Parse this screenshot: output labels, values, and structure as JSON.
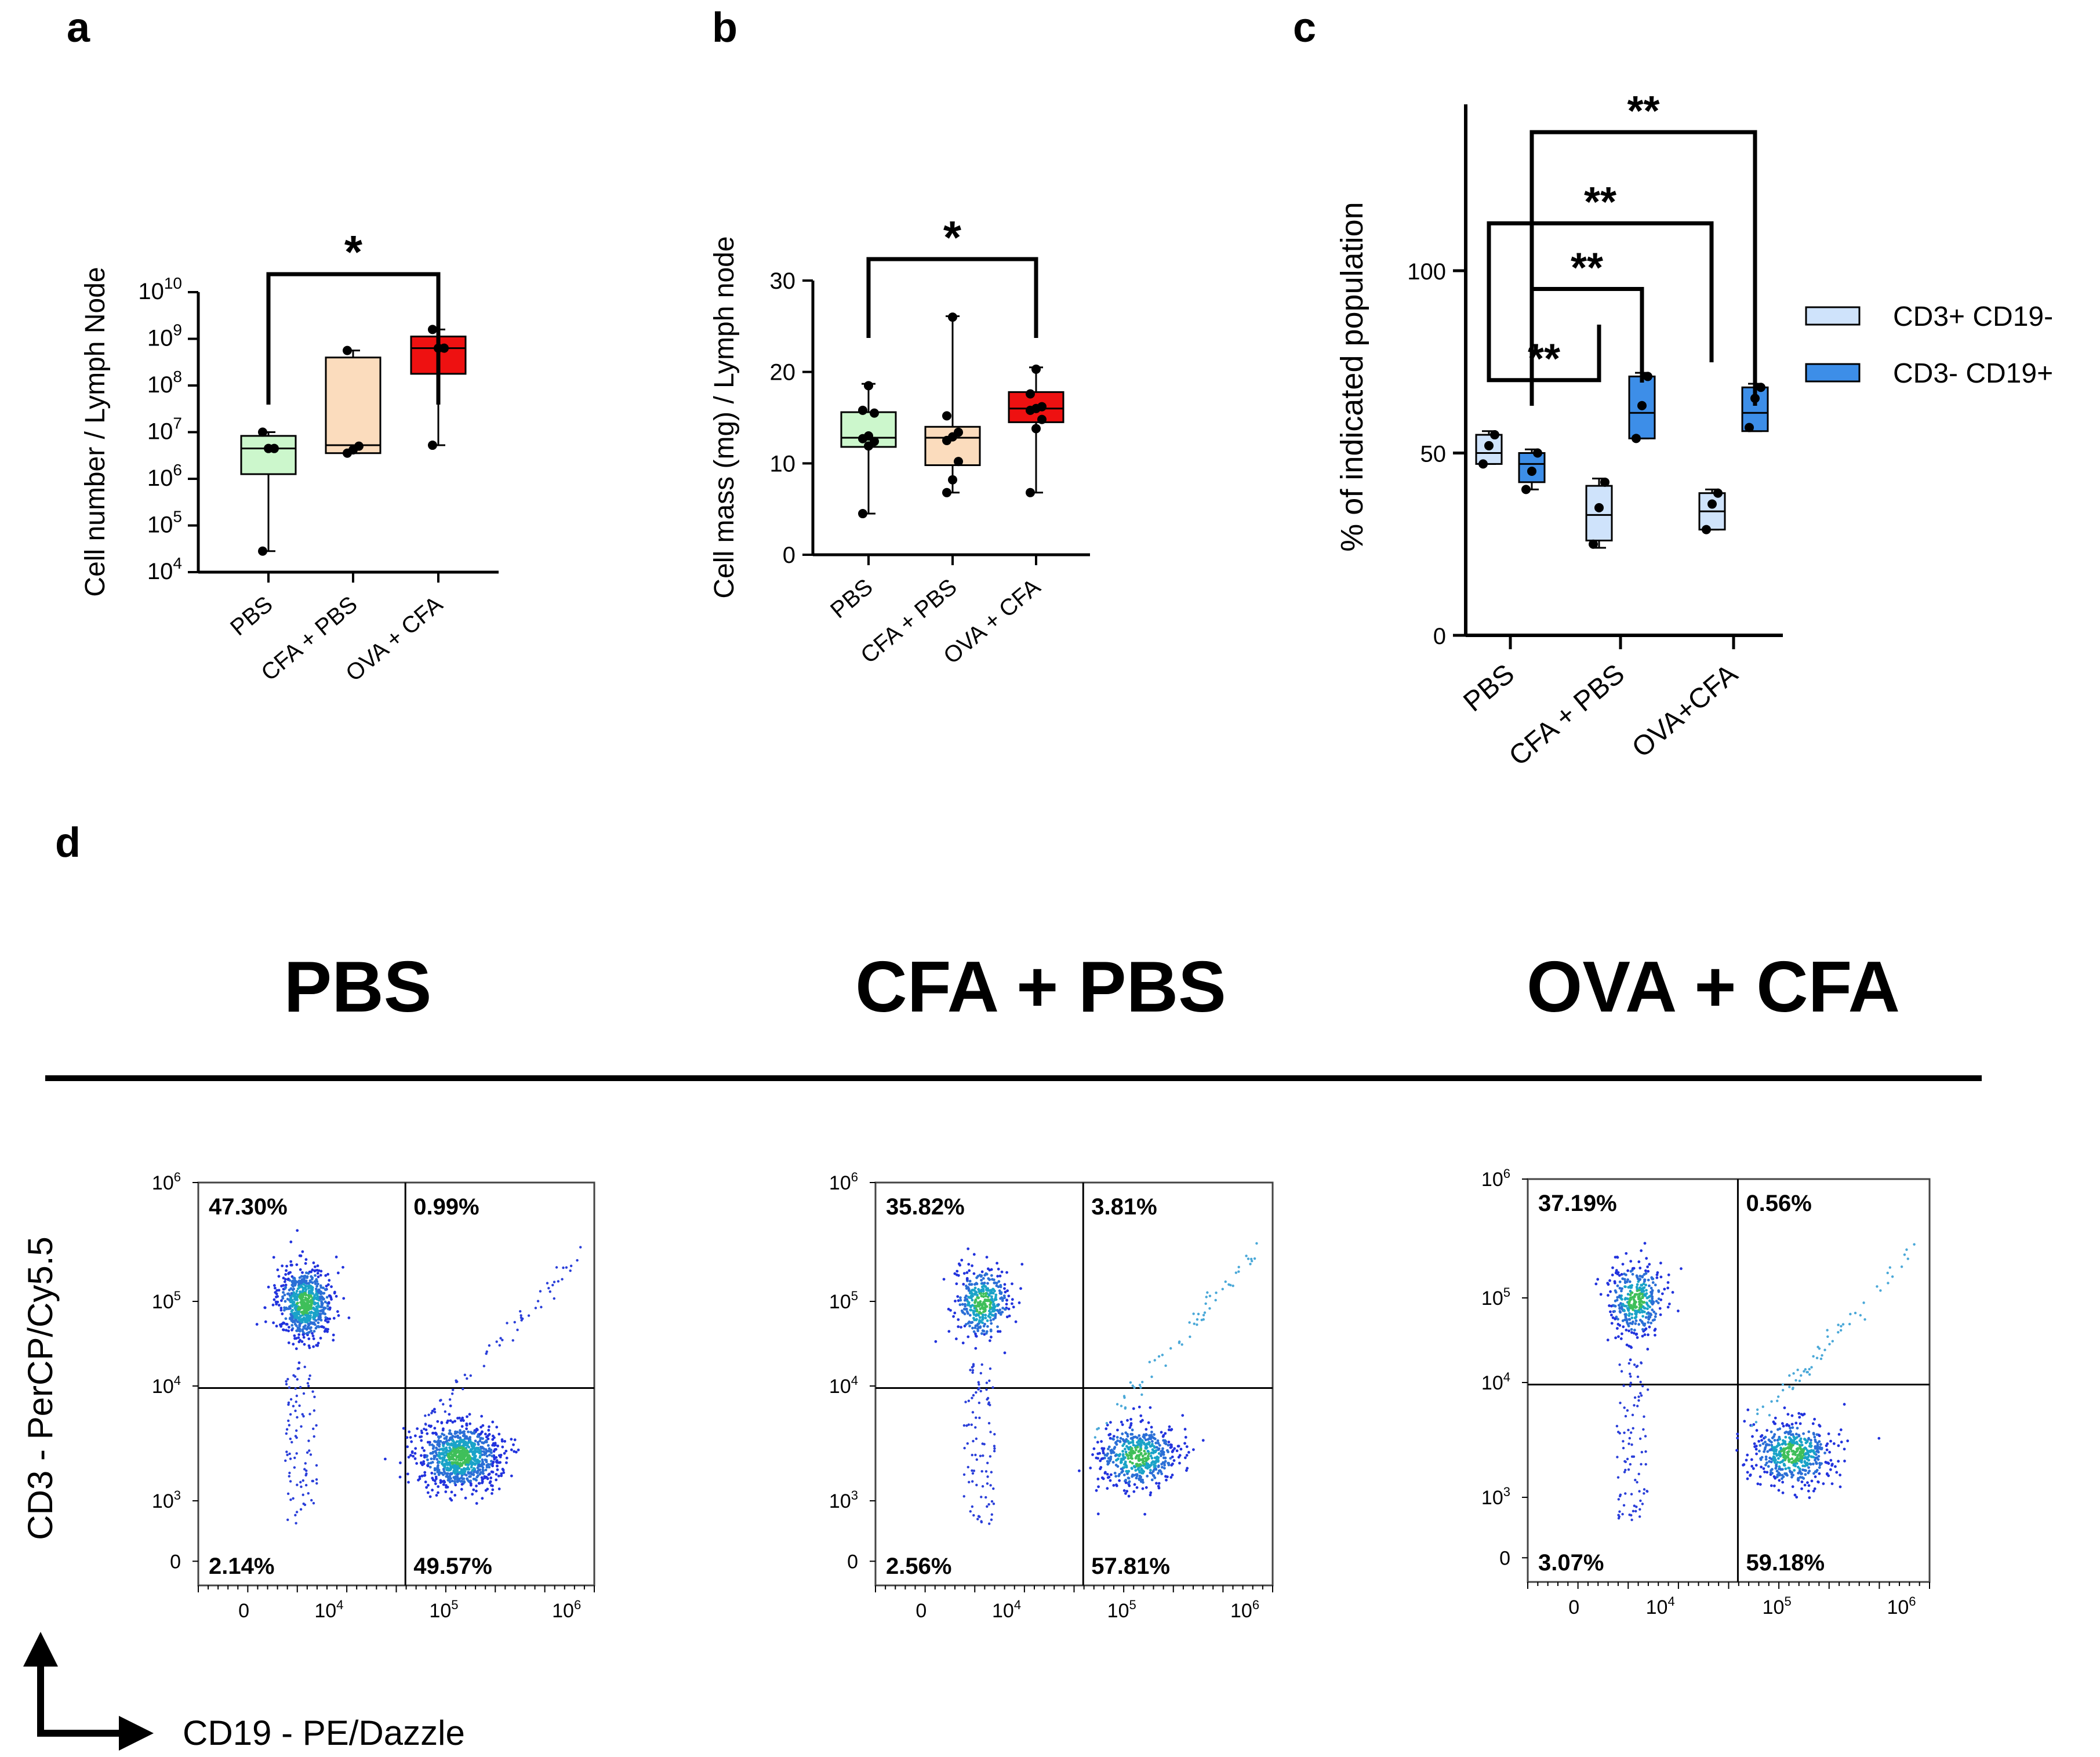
{
  "panels": {
    "a": "a",
    "b": "b",
    "c": "c",
    "d": "d"
  },
  "chart_data": [
    {
      "id": "a",
      "type": "box",
      "scale": "log10",
      "ylabel": "Cell number / Lymph Node",
      "ylim_exp": [
        4,
        10
      ],
      "yticks_exp": [
        4,
        5,
        6,
        7,
        8,
        9,
        10
      ],
      "categories": [
        "PBS",
        "CFA + PBS",
        "OVA + CFA"
      ],
      "fills": [
        "#ccf7cc",
        "#fbdcbd",
        "#ee1111"
      ],
      "boxes": [
        {
          "min": 4.45,
          "q1": 6.1,
          "median": 6.65,
          "q3": 6.92,
          "max": 7.0,
          "points": [
            4.45,
            6.65,
            6.65,
            7.0
          ]
        },
        {
          "min": 6.55,
          "q1": 6.55,
          "median": 6.72,
          "q3": 8.6,
          "max": 8.75,
          "points": [
            6.55,
            6.62,
            6.7,
            8.75
          ]
        },
        {
          "min": 6.72,
          "q1": 8.25,
          "median": 8.8,
          "q3": 9.05,
          "max": 9.2,
          "points": [
            6.72,
            8.8,
            8.8,
            9.2
          ]
        }
      ],
      "comparisons": [
        {
          "from": 0,
          "to": 2,
          "label": "*"
        }
      ]
    },
    {
      "id": "b",
      "type": "box",
      "ylabel": "Cell mass (mg) / Lymph node",
      "ylim": [
        0,
        30
      ],
      "yticks": [
        0,
        10,
        20,
        30
      ],
      "categories": [
        "PBS",
        "CFA + PBS",
        "OVA + CFA"
      ],
      "fills": [
        "#ccf7cc",
        "#fbdcbd",
        "#ee1111"
      ],
      "boxes": [
        {
          "min": 4.5,
          "q1": 11.8,
          "median": 12.8,
          "q3": 15.6,
          "max": 18.7,
          "points": [
            4.5,
            11.9,
            12.4,
            12.7,
            13.0,
            15.5,
            15.8,
            18.5
          ]
        },
        {
          "min": 6.8,
          "q1": 9.8,
          "median": 12.8,
          "q3": 14.0,
          "max": 26.1,
          "points": [
            6.8,
            8.2,
            10.2,
            12.5,
            12.9,
            13.4,
            15.2,
            26.0
          ]
        },
        {
          "min": 6.8,
          "q1": 14.5,
          "median": 16.0,
          "q3": 17.8,
          "max": 20.5,
          "points": [
            6.8,
            13.8,
            14.8,
            15.8,
            16.0,
            16.2,
            17.6,
            20.3
          ]
        }
      ],
      "comparisons": [
        {
          "from": 0,
          "to": 2,
          "label": "*"
        }
      ]
    },
    {
      "id": "c",
      "type": "box",
      "ylabel": "% of indicated population",
      "ylim": [
        0,
        150
      ],
      "yticks": [
        0,
        50,
        100
      ],
      "categories": [
        "PBS",
        "CFA + PBS",
        "OVA+CFA"
      ],
      "series": [
        {
          "name": "CD3+ CD19-",
          "color": "#cfe3fb",
          "boxes": [
            {
              "min": 47,
              "q1": 47,
              "median": 50,
              "q3": 55,
              "max": 56,
              "points": [
                47,
                52,
                55
              ]
            },
            {
              "min": 24,
              "q1": 26,
              "median": 33,
              "q3": 41,
              "max": 43,
              "points": [
                25,
                35,
                42
              ]
            },
            {
              "min": 29,
              "q1": 29,
              "median": 34,
              "q3": 39,
              "max": 40,
              "points": [
                29,
                36,
                39
              ]
            }
          ]
        },
        {
          "name": "CD3- CD19+",
          "color": "#3d8ee8",
          "boxes": [
            {
              "min": 40,
              "q1": 42,
              "median": 47,
              "q3": 50,
              "max": 51,
              "points": [
                40,
                45,
                50
              ]
            },
            {
              "min": 54,
              "q1": 54,
              "median": 61,
              "q3": 71,
              "max": 72,
              "points": [
                54,
                63,
                71
              ]
            },
            {
              "min": 56,
              "q1": 56,
              "median": 61,
              "q3": 68,
              "max": 69,
              "points": [
                57,
                65,
                68
              ]
            }
          ]
        }
      ],
      "comparisons": [
        {
          "label": "**",
          "y": 70
        },
        {
          "label": "**",
          "y": 95
        },
        {
          "label": "**",
          "y": 113
        },
        {
          "label": "**",
          "y": 138
        }
      ]
    },
    {
      "id": "d",
      "type": "scatter",
      "xlabel": "CD19 - PE/Dazzle",
      "ylabel": "CD3 - PerCP/Cy5.5",
      "xticks": [
        "0",
        "10^4",
        "10^5",
        "10^6"
      ],
      "yticks": [
        "0",
        "10^3",
        "10^4",
        "10^5",
        "10^6"
      ],
      "plots": [
        {
          "title": "PBS",
          "quadrants": {
            "ul": "47.30%",
            "ur": "0.99%",
            "ll": "2.14%",
            "lr": "49.57%"
          }
        },
        {
          "title": "CFA + PBS",
          "quadrants": {
            "ul": "35.82%",
            "ur": "3.81%",
            "ll": "2.56%",
            "lr": "57.81%"
          }
        },
        {
          "title": "OVA + CFA",
          "quadrants": {
            "ul": "37.19%",
            "ur": "0.56%",
            "ll": "3.07%",
            "lr": "59.18%"
          }
        }
      ]
    }
  ]
}
